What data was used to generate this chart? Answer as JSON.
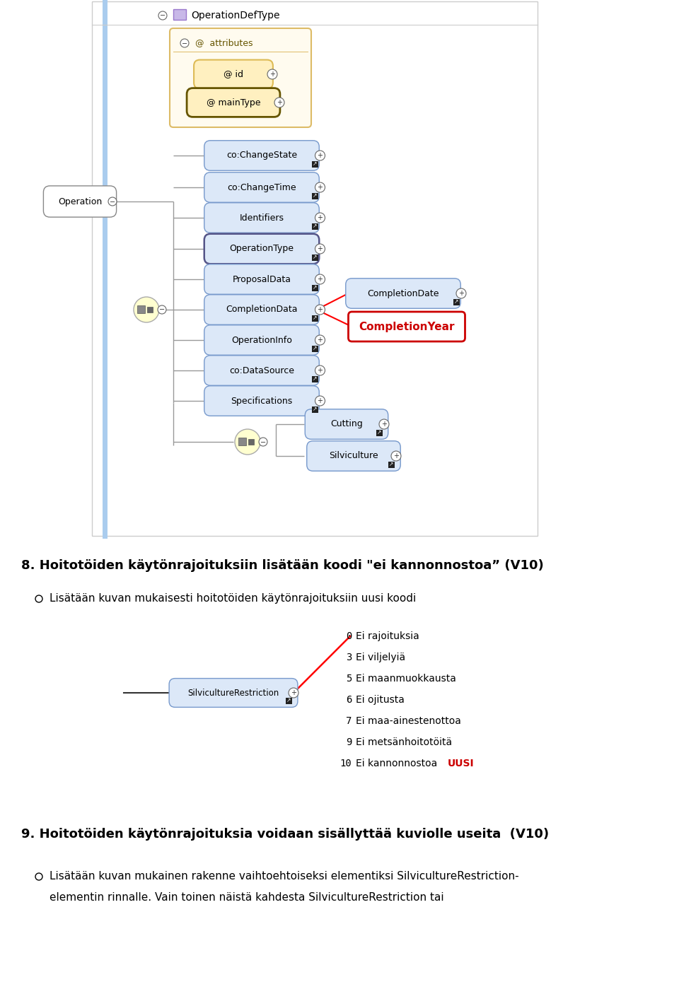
{
  "bg_color": "#ffffff",
  "section8_title": "8. Hoitotöiden käytönrajoituksiin lisätään koodi \"ei kannonnostoa” (V10)",
  "section8_bullet": "Lisätään kuvan mukaisesti hoitotöiden käytönrajoituksiin uusi koodi",
  "code_list": [
    {
      "num": "0",
      "text": "Ei rajoituksia"
    },
    {
      "num": "3",
      "text": "Ei viljelyiä"
    },
    {
      "num": "5",
      "text": "Ei maanmuokkausta"
    },
    {
      "num": "6",
      "text": "Ei ojitusta"
    },
    {
      "num": "7",
      "text": "Ei maa-ainestenottoa"
    },
    {
      "num": "9",
      "text": "Ei metsänhoitotöitä"
    },
    {
      "num": "10",
      "text": "Ei kannonnostoa ",
      "suffix": "UUSI",
      "suffix_color": "#cc0000"
    }
  ],
  "section9_title": "9. Hoitotöiden käytönrajoituksia voidaan sisällyttää kuviolle useita  (V10)",
  "section9_line1": "Lisätään kuvan mukainen rakenne vaihtoehtoiseksi elementiksi SilvicultureRestriction-",
  "section9_line2": "elementin rinnalle. Vain toinen näistä kahdesta SilvicultureRestriction tai"
}
